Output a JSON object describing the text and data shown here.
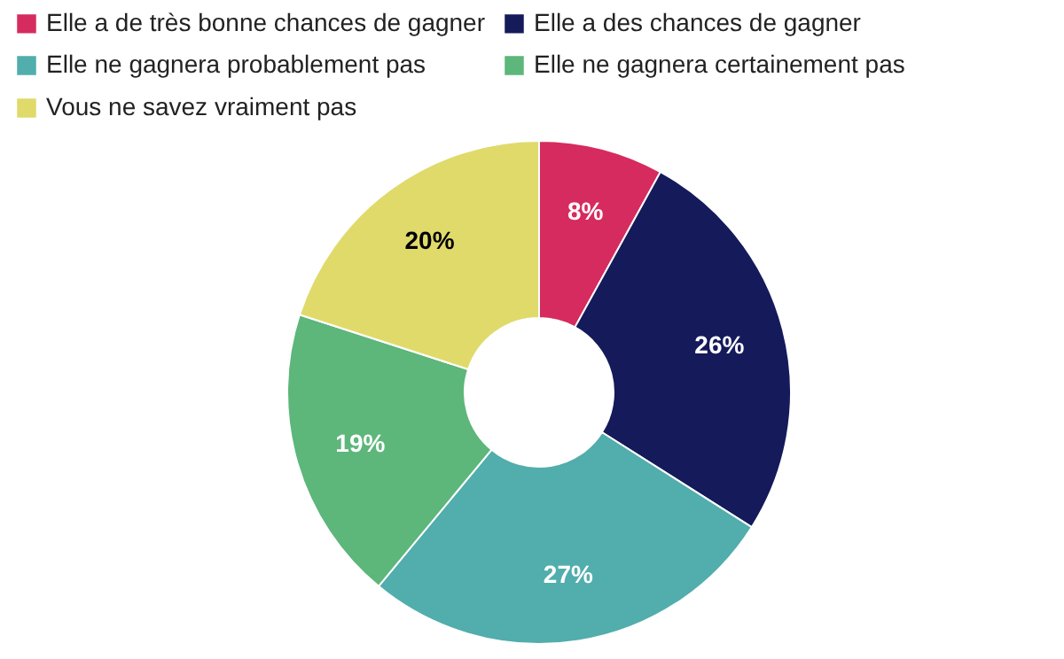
{
  "chart_data": {
    "type": "donut",
    "categories": [
      "Elle a de très bonne chances de gagner",
      "Elle a des chances de gagner",
      "Elle ne gagnera probablement pas",
      "Elle ne gagnera certainement pas",
      "Vous ne savez vraiment pas"
    ],
    "values": [
      8,
      26,
      27,
      19,
      20
    ],
    "colors": [
      "#d62b5e",
      "#141a5a",
      "#52adad",
      "#5db67a",
      "#e0da6b"
    ],
    "value_labels": [
      "8%",
      "26%",
      "27%",
      "19%",
      "20%"
    ],
    "legend": "top left"
  }
}
